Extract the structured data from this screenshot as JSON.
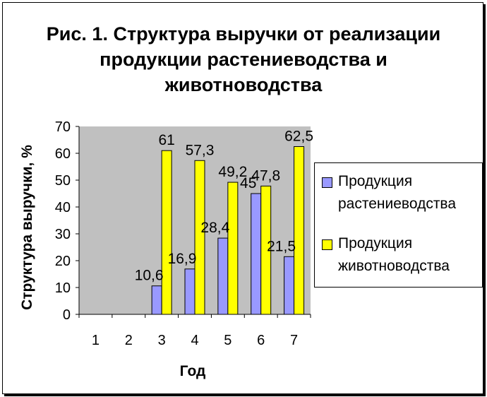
{
  "chart_data": {
    "type": "bar",
    "title": "Рис. 1. Структура выручки от реализации продукции растениеводства и животноводства",
    "xlabel": "Год",
    "ylabel": "Структура выручки, %",
    "categories": [
      "1",
      "2",
      "3",
      "4",
      "5",
      "6",
      "7"
    ],
    "ylim": [
      0,
      70
    ],
    "yticks": [
      "0",
      "10",
      "20",
      "30",
      "40",
      "50",
      "60",
      "70"
    ],
    "grid": false,
    "legend": "right",
    "series": [
      {
        "name": "Продукция растениеводства",
        "color": "#9999ff",
        "values": [
          null,
          null,
          10.6,
          16.9,
          28.4,
          45,
          21.5
        ],
        "labels": [
          "",
          "",
          "10,6",
          "16,9",
          "28,4",
          "45",
          "21,5"
        ]
      },
      {
        "name": "Продукция животноводства",
        "color": "#ffff00",
        "values": [
          null,
          null,
          61,
          57.3,
          49.2,
          47.8,
          62.5
        ],
        "labels": [
          "",
          "",
          "61",
          "57,3",
          "49,2",
          "47,8",
          "62,5"
        ]
      }
    ],
    "plot_background": "#c0c0c0"
  }
}
